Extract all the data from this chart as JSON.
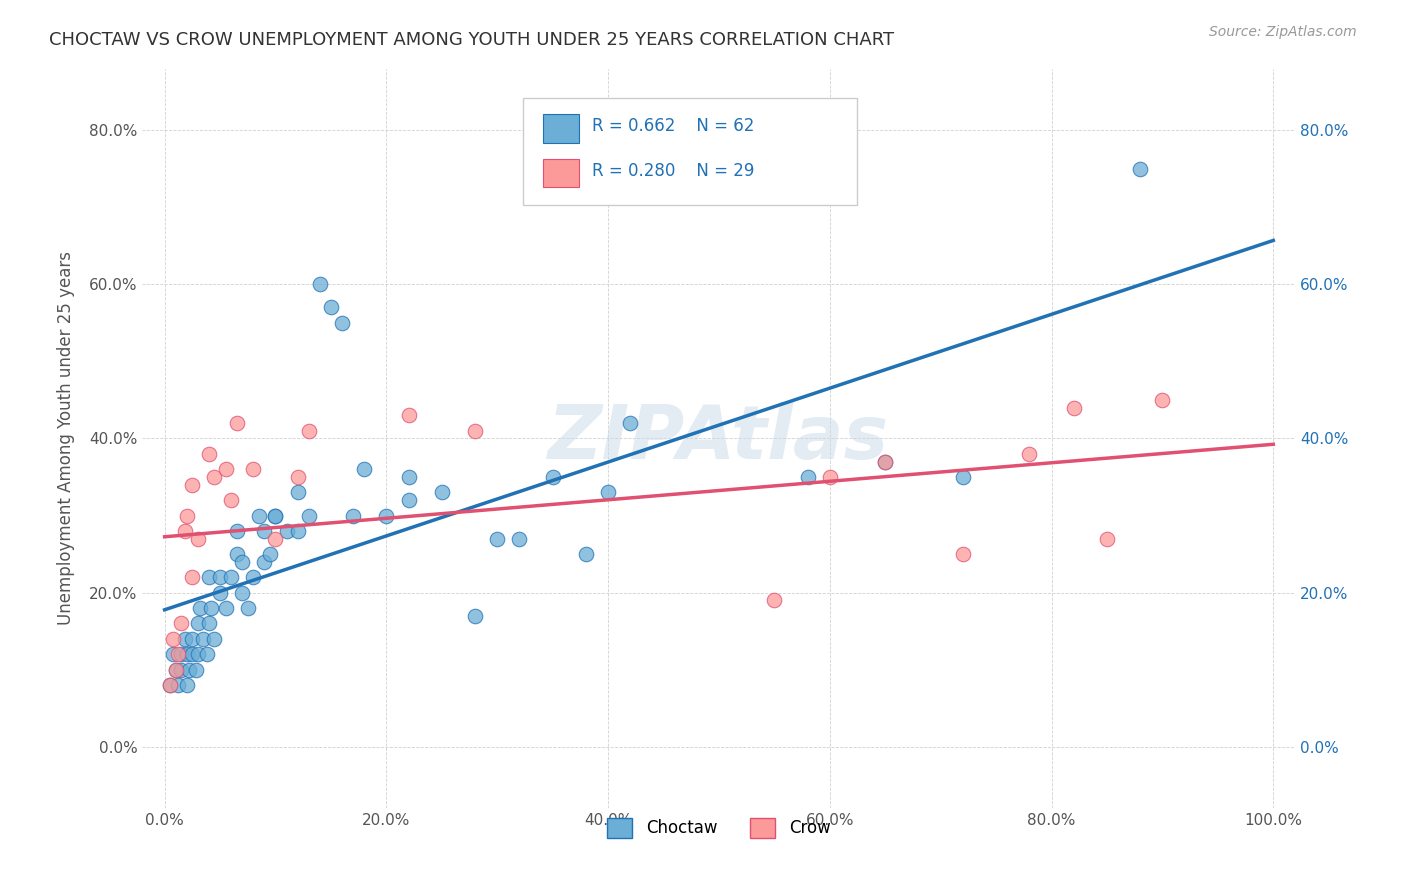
{
  "title": "CHOCTAW VS CROW UNEMPLOYMENT AMONG YOUTH UNDER 25 YEARS CORRELATION CHART",
  "source": "Source: ZipAtlas.com",
  "ylabel": "Unemployment Among Youth under 25 years",
  "xlim": [
    -0.02,
    1.02
  ],
  "ylim": [
    -0.08,
    0.88
  ],
  "xticks": [
    0.0,
    0.2,
    0.4,
    0.6,
    0.8,
    1.0
  ],
  "xtick_labels": [
    "0.0%",
    "20.0%",
    "40.0%",
    "60.0%",
    "80.0%",
    "100.0%"
  ],
  "yticks": [
    0.0,
    0.2,
    0.4,
    0.6,
    0.8
  ],
  "ytick_labels": [
    "0.0%",
    "20.0%",
    "40.0%",
    "60.0%",
    "80.0%"
  ],
  "right_ytick_labels": [
    "0.0%",
    "20.0%",
    "40.0%",
    "60.0%",
    "80.0%"
  ],
  "choctaw_color": "#6baed6",
  "crow_color": "#fb9a99",
  "choctaw_line_color": "#2171b5",
  "crow_line_color": "#e05070",
  "choctaw_R": 0.662,
  "choctaw_N": 62,
  "crow_R": 0.28,
  "crow_N": 29,
  "watermark": "ZIPAtlas",
  "background_color": "#ffffff",
  "choctaw_x": [
    0.005,
    0.008,
    0.01,
    0.012,
    0.015,
    0.015,
    0.018,
    0.02,
    0.02,
    0.022,
    0.025,
    0.025,
    0.028,
    0.03,
    0.03,
    0.032,
    0.035,
    0.038,
    0.04,
    0.04,
    0.042,
    0.045,
    0.05,
    0.05,
    0.055,
    0.06,
    0.065,
    0.065,
    0.07,
    0.07,
    0.075,
    0.08,
    0.085,
    0.09,
    0.09,
    0.095,
    0.1,
    0.1,
    0.11,
    0.12,
    0.12,
    0.13,
    0.14,
    0.15,
    0.16,
    0.17,
    0.18,
    0.2,
    0.22,
    0.22,
    0.25,
    0.28,
    0.3,
    0.32,
    0.35,
    0.38,
    0.4,
    0.42,
    0.58,
    0.65,
    0.72,
    0.88
  ],
  "choctaw_y": [
    0.08,
    0.12,
    0.1,
    0.08,
    0.1,
    0.12,
    0.14,
    0.08,
    0.12,
    0.1,
    0.12,
    0.14,
    0.1,
    0.12,
    0.16,
    0.18,
    0.14,
    0.12,
    0.16,
    0.22,
    0.18,
    0.14,
    0.2,
    0.22,
    0.18,
    0.22,
    0.25,
    0.28,
    0.2,
    0.24,
    0.18,
    0.22,
    0.3,
    0.24,
    0.28,
    0.25,
    0.3,
    0.3,
    0.28,
    0.28,
    0.33,
    0.3,
    0.6,
    0.57,
    0.55,
    0.3,
    0.36,
    0.3,
    0.32,
    0.35,
    0.33,
    0.17,
    0.27,
    0.27,
    0.35,
    0.25,
    0.33,
    0.42,
    0.35,
    0.37,
    0.35,
    0.75
  ],
  "crow_x": [
    0.005,
    0.008,
    0.01,
    0.012,
    0.015,
    0.018,
    0.02,
    0.025,
    0.025,
    0.03,
    0.04,
    0.045,
    0.055,
    0.06,
    0.065,
    0.08,
    0.1,
    0.12,
    0.13,
    0.22,
    0.28,
    0.55,
    0.6,
    0.65,
    0.72,
    0.78,
    0.82,
    0.85,
    0.9
  ],
  "crow_y": [
    0.08,
    0.14,
    0.1,
    0.12,
    0.16,
    0.28,
    0.3,
    0.34,
    0.22,
    0.27,
    0.38,
    0.35,
    0.36,
    0.32,
    0.42,
    0.36,
    0.27,
    0.35,
    0.41,
    0.43,
    0.41,
    0.19,
    0.35,
    0.37,
    0.25,
    0.38,
    0.44,
    0.27,
    0.45
  ]
}
